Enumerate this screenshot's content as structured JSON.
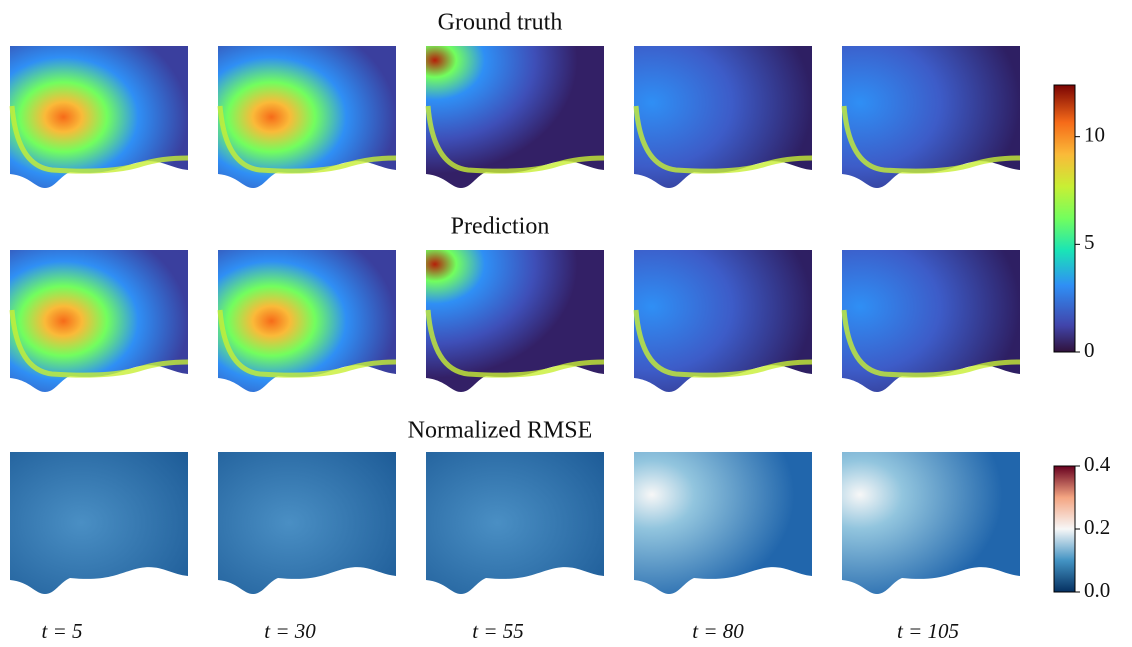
{
  "rows": [
    {
      "title": "Ground truth"
    },
    {
      "title": "Prediction"
    },
    {
      "title": "Normalized RMSE"
    }
  ],
  "time_labels": [
    "t = 5",
    "t = 30",
    "t = 55",
    "t = 80",
    "t = 105"
  ],
  "colorbars": [
    {
      "colormap": "turbo",
      "lim": [
        0,
        12.4
      ],
      "ticks": [
        0,
        5,
        10
      ]
    },
    {
      "colormap": "RdBu_r",
      "lim": [
        0,
        0.4
      ],
      "ticks": [
        {
          "value": 0,
          "label": "0.0"
        },
        0.2,
        0.4
      ]
    }
  ]
}
